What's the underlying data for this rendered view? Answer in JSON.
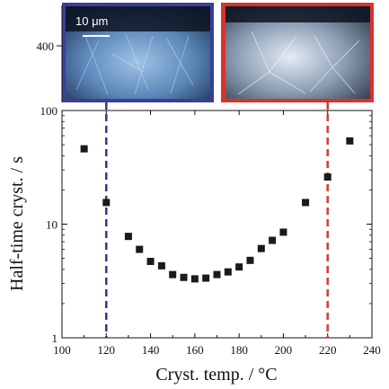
{
  "chart_data": {
    "type": "scatter",
    "xlabel": "Cryst. temp. / °C",
    "ylabel": "Half-time cryst. / s",
    "x_ticks": [
      100,
      120,
      140,
      160,
      180,
      200,
      220,
      240
    ],
    "y_ticks": [
      1,
      10,
      100
    ],
    "xlim": [
      100,
      240
    ],
    "ylim": [
      1,
      100
    ],
    "y_scale": "log",
    "top_axis_tick": "400",
    "grid": false,
    "marker": "square",
    "marker_color": "#1a1a1a",
    "points": [
      {
        "x": 110,
        "y": 46
      },
      {
        "x": 120,
        "y": 15.5
      },
      {
        "x": 130,
        "y": 7.8
      },
      {
        "x": 135,
        "y": 6.0
      },
      {
        "x": 140,
        "y": 4.7
      },
      {
        "x": 145,
        "y": 4.3
      },
      {
        "x": 150,
        "y": 3.6
      },
      {
        "x": 155,
        "y": 3.4
      },
      {
        "x": 160,
        "y": 3.3
      },
      {
        "x": 165,
        "y": 3.35
      },
      {
        "x": 170,
        "y": 3.6
      },
      {
        "x": 175,
        "y": 3.8
      },
      {
        "x": 180,
        "y": 4.2
      },
      {
        "x": 185,
        "y": 4.8
      },
      {
        "x": 190,
        "y": 6.1
      },
      {
        "x": 195,
        "y": 7.2
      },
      {
        "x": 200,
        "y": 8.5
      },
      {
        "x": 210,
        "y": 15.5
      },
      {
        "x": 220,
        "y": 26
      },
      {
        "x": 230,
        "y": 54
      }
    ],
    "reference_lines": [
      {
        "x": 120,
        "color": "#2e3a8c",
        "style": "dashed"
      },
      {
        "x": 220,
        "color": "#d63a3a",
        "style": "dashed"
      }
    ],
    "insets": [
      {
        "border_color": "#3a3f99",
        "scale_bar_label": "10 μm"
      },
      {
        "border_color": "#d9332e"
      }
    ]
  }
}
